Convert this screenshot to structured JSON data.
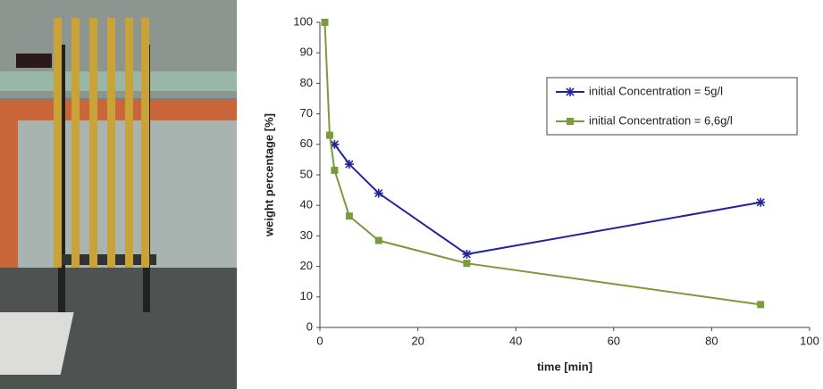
{
  "chart_data": {
    "type": "line",
    "xlabel": "time [min]",
    "ylabel": "weight  percentage [%]",
    "xlim": [
      0,
      100
    ],
    "xticks": [
      0,
      20,
      40,
      60,
      80,
      100
    ],
    "ylim": [
      0,
      100
    ],
    "yticks": [
      0,
      10,
      20,
      30,
      40,
      50,
      60,
      70,
      80,
      90,
      100
    ],
    "grid": false,
    "legend": "upper right",
    "series": [
      {
        "name": "initial Concentration = 5g/l",
        "color": "#24239a",
        "marker": "star",
        "x": [
          3,
          6,
          12,
          30,
          90
        ],
        "values": [
          60,
          53.5,
          44,
          24,
          41
        ]
      },
      {
        "name": "initial Concentration = 6,6g/l",
        "color": "#7b9a3c",
        "marker": "square",
        "x": [
          1,
          2,
          3,
          6,
          12,
          30,
          90
        ],
        "values": [
          100,
          63,
          51.5,
          36.5,
          28.5,
          21,
          7.5
        ]
      }
    ]
  }
}
